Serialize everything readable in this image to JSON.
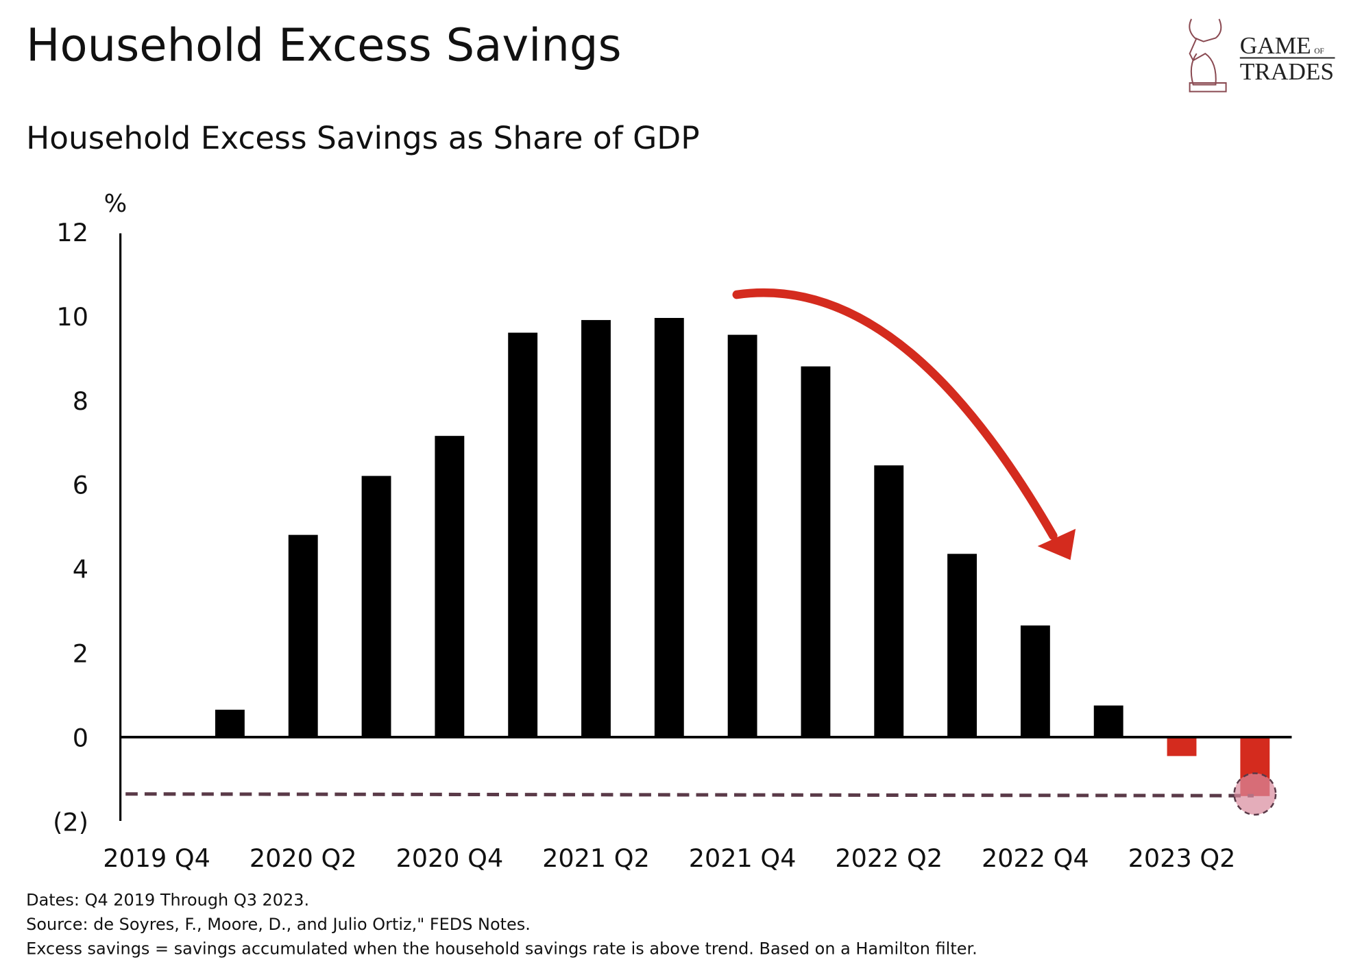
{
  "title": "Household Excess Savings",
  "logo": {
    "text_line1": "GAME",
    "text_of": "OF",
    "text_line2": "TRADES"
  },
  "chart_data": {
    "type": "bar",
    "title": "Household Excess Savings as Share of GDP",
    "ylabel": "%",
    "ylim": [
      -2,
      12
    ],
    "yticks": [
      12,
      10,
      8,
      6,
      4,
      2,
      0,
      -2
    ],
    "ytick_labels": [
      "12",
      "10",
      "8",
      "6",
      "4",
      "2",
      "0",
      "(2)"
    ],
    "categories": [
      "2019 Q4",
      "2020 Q1",
      "2020 Q2",
      "2020 Q3",
      "2020 Q4",
      "2021 Q1",
      "2021 Q2",
      "2021 Q3",
      "2021 Q4",
      "2022 Q1",
      "2022 Q2",
      "2022 Q3",
      "2022 Q4",
      "2023 Q1",
      "2023 Q2",
      "2023 Q3"
    ],
    "xtick_labels": [
      "2019 Q4",
      "2020 Q2",
      "2020 Q4",
      "2021 Q2",
      "2021 Q4",
      "2022 Q2",
      "2022 Q4",
      "2023 Q2"
    ],
    "values": [
      0,
      0.65,
      4.8,
      6.2,
      7.15,
      9.6,
      9.9,
      9.95,
      9.55,
      8.8,
      6.45,
      4.35,
      2.65,
      0.75,
      -0.45,
      -1.4
    ],
    "colors": {
      "positive": "#000000",
      "negative": "#d42b1e",
      "arrow": "#d42b1e",
      "reference_line": "#5a3a48",
      "highlight_circle": "#d98a9c"
    },
    "reference_line_value": -1.35,
    "annotations": [
      "red arrow pointing down from 2021 Q3 peak toward 2022 Q4",
      "dashed reference line at about -1.35",
      "circle highlight on 2023 Q3 bar"
    ],
    "grid": false
  },
  "footnotes": [
    "Dates: Q4 2019 Through Q3 2023.",
    "Source: de Soyres, F., Moore, D., and Julio Ortiz,\" FEDS Notes.",
    "Excess savings = savings accumulated when the household savings rate is above trend. Based on a Hamilton filter."
  ]
}
